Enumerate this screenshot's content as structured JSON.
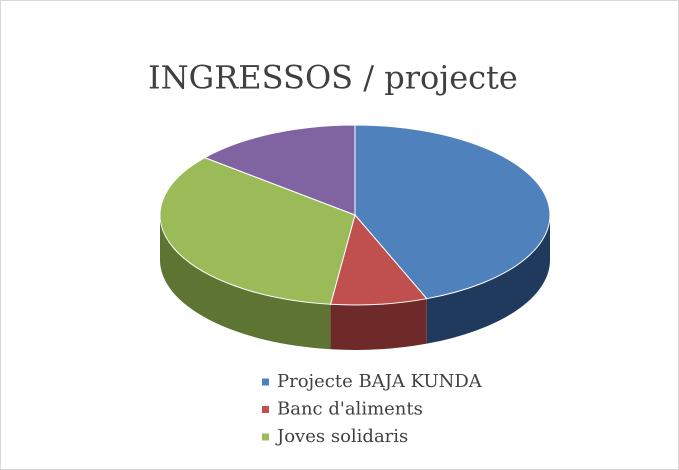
{
  "chart_data": {
    "type": "pie",
    "title": "INGRESSOS / projecte",
    "categories": [
      "Projecte BAJA KUNDA",
      "Banc d'aliments",
      "Joves solidaris",
      null
    ],
    "values": [
      44,
      8,
      34,
      14
    ],
    "colors": [
      "#4f81bd",
      "#c0504d",
      "#9bbb59",
      "#8064a2"
    ],
    "side_colors": [
      "#1f3a5c",
      "#6e2a28",
      "#5d7433",
      "#4a3a60"
    ],
    "legend": "bottom"
  }
}
